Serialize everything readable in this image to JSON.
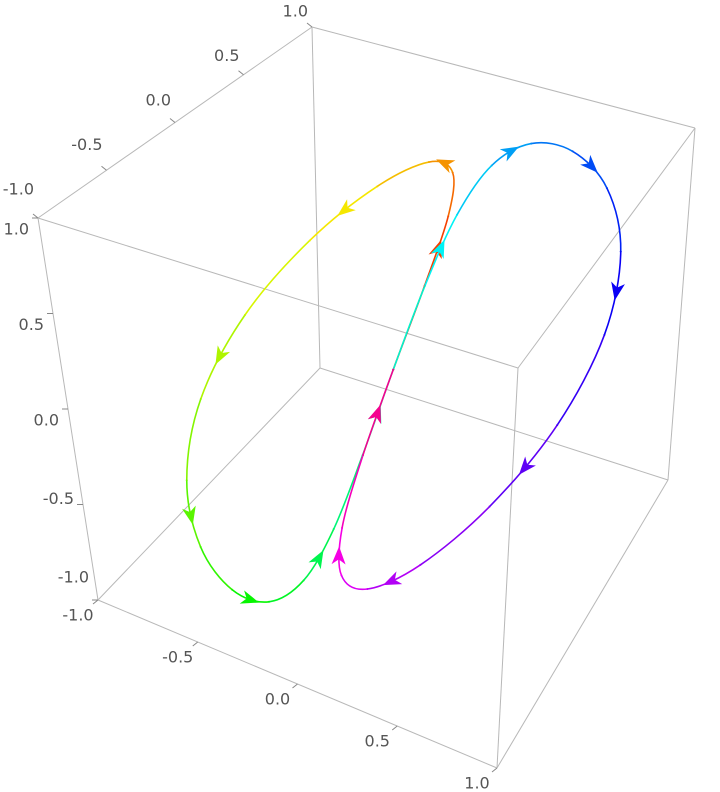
{
  "chart_data": {
    "type": "parametric3d",
    "series": [
      {
        "x": [
          0,
          0.037,
          0.051,
          0.007,
          -0.125,
          -0.338,
          -0.585,
          -0.794,
          -0.9,
          -0.871,
          -0.727,
          -0.522,
          -0.325,
          -0.178,
          -0.09,
          -0.039,
          0,
          0.039,
          0.09,
          0.178,
          0.325,
          0.522,
          0.727,
          0.871,
          0.9,
          0.795,
          0.585,
          0.338,
          0.125,
          -0.006,
          -0.052,
          -0.037,
          0
        ],
        "y": [
          0,
          0.23,
          0.421,
          0.54,
          0.563,
          0.482,
          0.315,
          0.091,
          -0.15,
          -0.369,
          -0.533,
          -0.626,
          -0.638,
          -0.568,
          -0.427,
          -0.23,
          0,
          0.23,
          0.43,
          0.583,
          0.675,
          0.697,
          0.643,
          0.508,
          0.3,
          0.048,
          -0.205,
          -0.411,
          -0.525,
          -0.525,
          -0.418,
          -0.23,
          0
        ],
        "z": [
          0,
          0.325,
          0.592,
          0.747,
          0.75,
          0.594,
          0.309,
          -0.044,
          -0.4,
          -0.696,
          -0.893,
          -0.976,
          -0.95,
          -0.823,
          -0.61,
          -0.327,
          0,
          0.326,
          0.607,
          0.814,
          0.925,
          0.928,
          0.82,
          0.604,
          0.3,
          -0.048,
          -0.382,
          -0.642,
          -0.775,
          -0.756,
          -0.595,
          -0.326,
          0
        ]
      }
    ],
    "xlim": [
      -1,
      1
    ],
    "ylim": [
      -1,
      1
    ],
    "zlim": [
      -1,
      1
    ],
    "xticks": [
      {
        "value": -1,
        "label": "-1.0"
      },
      -0.5,
      {
        "value": 0,
        "label": "0.0"
      },
      0.5,
      {
        "value": 1,
        "label": "1.0"
      }
    ],
    "yticks": [
      {
        "value": -1,
        "label": "-1.0"
      },
      -0.5,
      {
        "value": 0,
        "label": "0.0"
      },
      0.5,
      {
        "value": 1,
        "label": "1.0"
      }
    ],
    "zticks": [
      {
        "value": -1,
        "label": "-1.0"
      },
      -0.5,
      {
        "value": 0,
        "label": "0.0"
      },
      0.5,
      {
        "value": 1,
        "label": "1.0"
      }
    ],
    "arrows": true
  }
}
